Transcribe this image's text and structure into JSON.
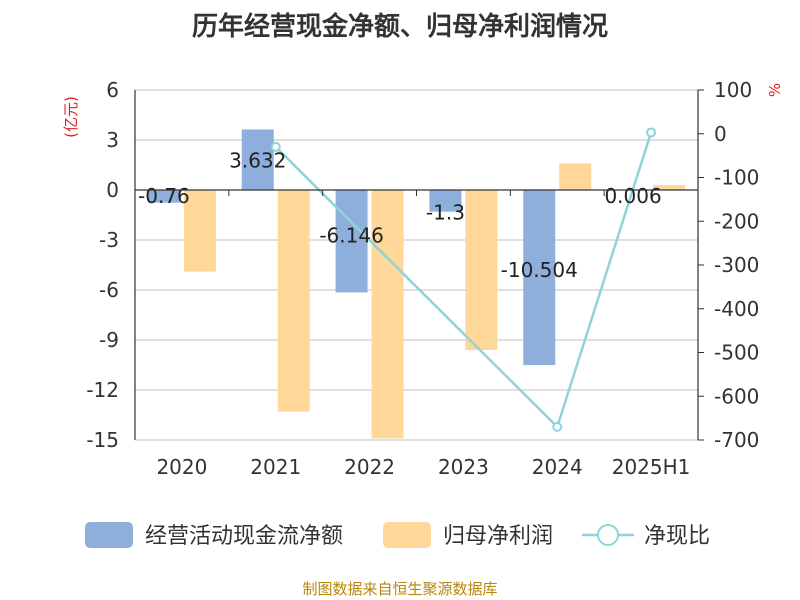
{
  "title": "历年经营现金净额、归母净利润情况",
  "source": "制图数据来自恒生聚源数据库",
  "colors": {
    "cashflow": "#8eafdc",
    "profit": "#ffd899",
    "ratio": "#8fd3da",
    "unit": "#e02020",
    "grid": "#c0c0c0",
    "axis": "#333333"
  },
  "chart_data": {
    "type": "bar",
    "categories": [
      "2020",
      "2021",
      "2022",
      "2023",
      "2024",
      "2025H1"
    ],
    "y_left": {
      "unit": "(亿元)",
      "ylim": [
        -15,
        6
      ],
      "ticks": [
        6,
        3,
        0,
        -3,
        -6,
        -9,
        -12,
        -15
      ]
    },
    "y_right": {
      "unit": "%",
      "ylim": [
        -700,
        100
      ],
      "ticks": [
        100,
        0,
        -100,
        -200,
        -300,
        -400,
        -500,
        -600,
        -700
      ]
    },
    "grid": true,
    "legend_position": "bottom",
    "series": [
      {
        "name": "经营活动现金流净额",
        "type": "bar",
        "axis": "left",
        "values": [
          -0.76,
          3.632,
          -6.146,
          -1.3,
          -10.504,
          0.006
        ],
        "labels": [
          "-0.76",
          "3.632",
          "-6.146",
          "-1.3",
          "-10.504",
          "0.006"
        ]
      },
      {
        "name": "归母净利润",
        "type": "bar",
        "axis": "left",
        "values": [
          -4.9,
          -13.3,
          -14.9,
          -9.6,
          1.6,
          0.3
        ]
      },
      {
        "name": "净现比",
        "type": "line",
        "axis": "right",
        "values": [
          null,
          -30,
          null,
          null,
          -670,
          3
        ]
      }
    ]
  }
}
